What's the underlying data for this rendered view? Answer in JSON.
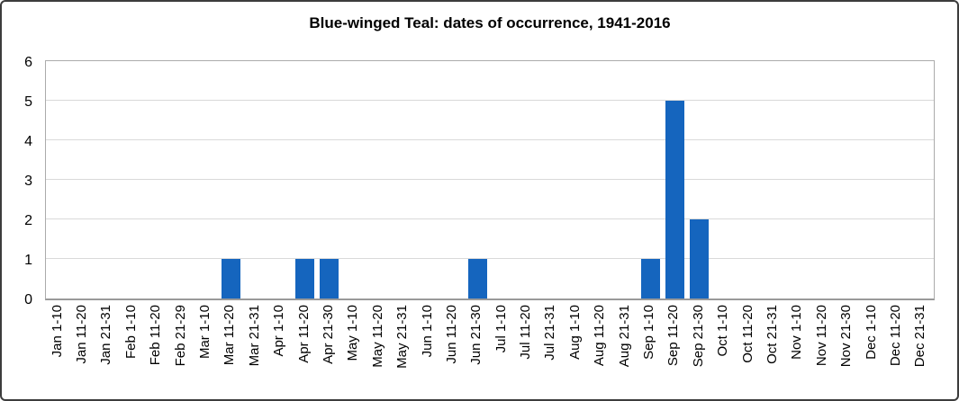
{
  "chart_data": {
    "type": "bar",
    "title": "Blue-winged Teal: dates of occurrence, 1941-2016",
    "categories": [
      "Jan 1-10",
      "Jan 11-20",
      "Jan 21-31",
      "Feb 1-10",
      "Feb 11-20",
      "Feb 21-29",
      "Mar 1-10",
      "Mar 11-20",
      "Mar 21-31",
      "Apr 1-10",
      "Apr 11-20",
      "Apr 21-30",
      "May 1-10",
      "May 11-20",
      "May 21-31",
      "Jun 1-10",
      "Jun 11-20",
      "Jun 21-30",
      "Jul 1-10",
      "Jul 11-20",
      "Jul 21-31",
      "Aug 1-10",
      "Aug 11-20",
      "Aug 21-31",
      "Sep 1-10",
      "Sep 11-20",
      "Sep 21-30",
      "Oct 1-10",
      "Oct 11-20",
      "Oct 21-31",
      "Nov 1-10",
      "Nov 11-20",
      "Nov 21-30",
      "Dec 1-10",
      "Dec 11-20",
      "Dec 21-31"
    ],
    "values": [
      0,
      0,
      0,
      0,
      0,
      0,
      0,
      1,
      0,
      0,
      1,
      1,
      0,
      0,
      0,
      0,
      0,
      1,
      0,
      0,
      0,
      0,
      0,
      0,
      1,
      5,
      2,
      0,
      0,
      0,
      0,
      0,
      0,
      0,
      0,
      0
    ],
    "xlabel": "",
    "ylabel": "",
    "ylim": [
      0,
      6
    ],
    "yticks": [
      0,
      1,
      2,
      3,
      4,
      5,
      6
    ],
    "grid": true,
    "legend": false,
    "bar_color": "#1565be",
    "gridline_color": "#d9d9d9",
    "plot_border_color": "#ababab",
    "axis_line_color": "#9a9a9a",
    "text_color": "#000000"
  }
}
